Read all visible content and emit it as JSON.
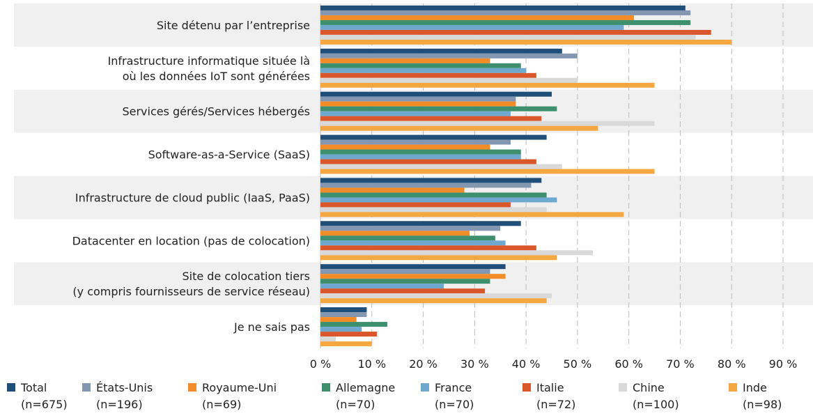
{
  "chart_data": {
    "type": "bar",
    "orientation": "horizontal",
    "categories": [
      "Site détenu par l’entreprise",
      "Infrastructure informatique située là\noù les données IoT sont générées",
      "Services gérés/Services hébergés",
      "Software-as-a-Service (SaaS)",
      "Infrastructure de cloud public (IaaS, PaaS)",
      "Datacenter en location (pas de colocation)",
      "Site de colocation tiers\n(y compris fournisseurs de service réseau)",
      "Je ne sais pas"
    ],
    "series": [
      {
        "name": "Total",
        "sample": "(n=675)",
        "color": "#1f4e79",
        "values": [
          71,
          47,
          45,
          44,
          43,
          39,
          36,
          9
        ]
      },
      {
        "name": "États-Unis",
        "sample": "(n=196)",
        "color": "#8497b0",
        "values": [
          72,
          50,
          38,
          37,
          41,
          35,
          33,
          9
        ]
      },
      {
        "name": "Royaume-Uni",
        "sample": "(n=69)",
        "color": "#f28c28",
        "values": [
          61,
          33,
          38,
          33,
          28,
          29,
          36,
          7
        ]
      },
      {
        "name": "Allemagne",
        "sample": "(n=70)",
        "color": "#3d8f6e",
        "values": [
          72,
          39,
          46,
          39,
          44,
          34,
          33,
          13
        ]
      },
      {
        "name": "France",
        "sample": "(n=70)",
        "color": "#6fa8cf",
        "values": [
          59,
          40,
          37,
          39,
          46,
          36,
          24,
          8
        ]
      },
      {
        "name": "Italie",
        "sample": "(n=72)",
        "color": "#d9572b",
        "values": [
          76,
          42,
          43,
          42,
          37,
          42,
          32,
          11
        ]
      },
      {
        "name": "Chine",
        "sample": "(n=100)",
        "color": "#d9d9d9",
        "values": [
          73,
          50,
          65,
          47,
          44,
          53,
          45,
          3
        ]
      },
      {
        "name": "Inde",
        "sample": "(n=98)",
        "color": "#f5a742",
        "values": [
          80,
          65,
          54,
          65,
          59,
          46,
          44,
          10
        ]
      }
    ],
    "xlim": [
      0,
      90
    ],
    "xticks": [
      {
        "value": 0,
        "label": "0 %"
      },
      {
        "value": 10,
        "label": "10 %"
      },
      {
        "value": 20,
        "label": "20 %"
      },
      {
        "value": 30,
        "label": "30 %"
      },
      {
        "value": 40,
        "label": "40 %"
      },
      {
        "value": 50,
        "label": "50 %"
      },
      {
        "value": 60,
        "label": "60 %"
      },
      {
        "value": 70,
        "label": "70 %"
      },
      {
        "value": 80,
        "label": "80 %"
      },
      {
        "value": 90,
        "label": "90 %"
      }
    ],
    "grid": true
  }
}
